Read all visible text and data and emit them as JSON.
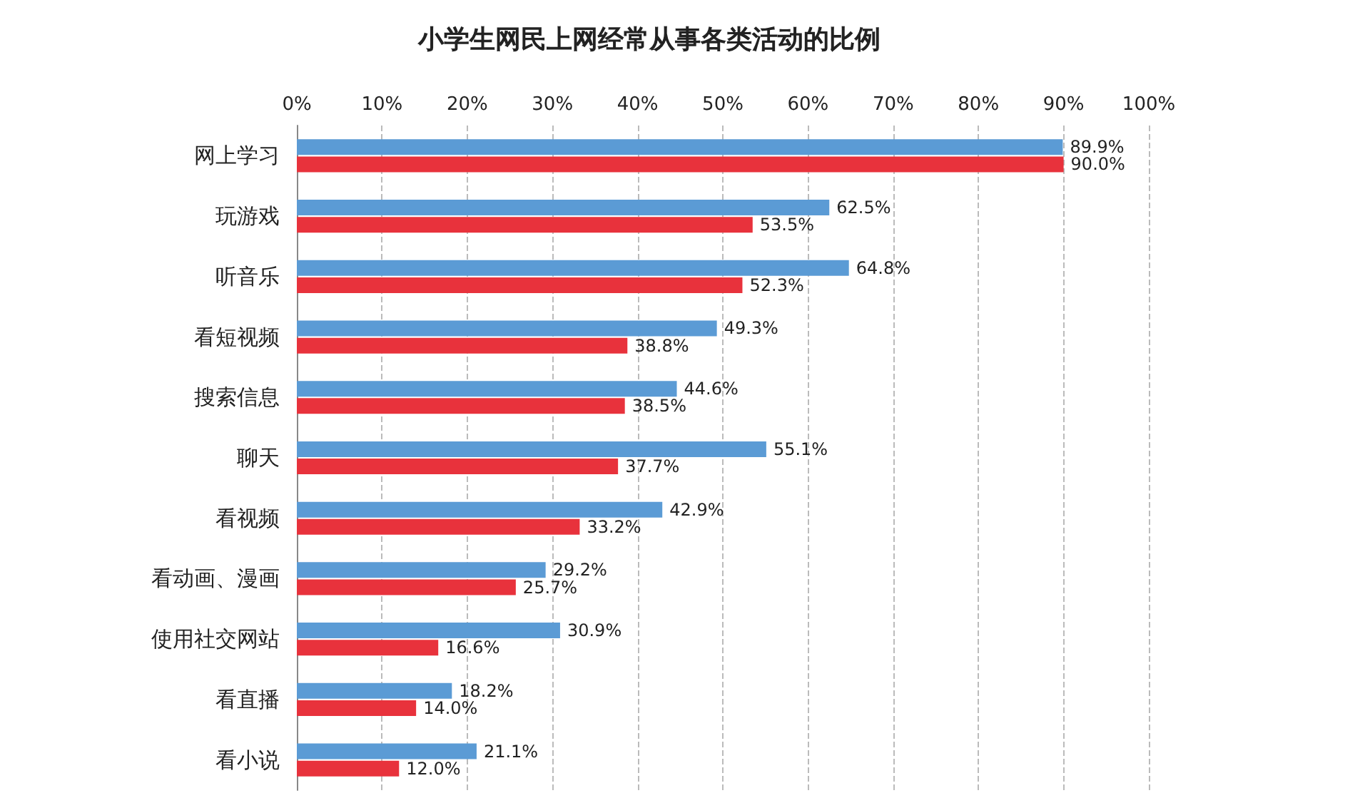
{
  "chart_data": {
    "type": "bar",
    "orientation": "horizontal",
    "title": "小学生网民上网经常从事各类活动的比例",
    "categories": [
      "网上学习",
      "玩游戏",
      "听音乐",
      "看短视频",
      "搜索信息",
      "聊天",
      "看视频",
      "看动画、漫画",
      "使用社交网站",
      "看直播",
      "看小说"
    ],
    "series": [
      {
        "color": "#5b9bd5",
        "values": [
          89.9,
          62.5,
          64.8,
          49.3,
          44.6,
          55.1,
          42.9,
          29.2,
          30.9,
          18.2,
          21.1
        ],
        "value_labels": [
          "89.9%",
          "62.5%",
          "64.8%",
          "49.3%",
          "44.6%",
          "55.1%",
          "42.9%",
          "29.2%",
          "30.9%",
          "18.2%",
          "21.1%"
        ]
      },
      {
        "color": "#e8323c",
        "values": [
          90.0,
          53.5,
          52.3,
          38.8,
          38.5,
          37.7,
          33.2,
          25.7,
          16.6,
          14.0,
          12.0
        ],
        "value_labels": [
          "90.0%",
          "53.5%",
          "52.3%",
          "38.8%",
          "38.5%",
          "37.7%",
          "33.2%",
          "25.7%",
          "16.6%",
          "14.0%",
          "12.0%"
        ]
      }
    ],
    "xlim": [
      0,
      100
    ],
    "xticks": [
      {
        "value": 0,
        "label": "0%"
      },
      {
        "value": 10,
        "label": "10%"
      },
      {
        "value": 20,
        "label": "20%"
      },
      {
        "value": 30,
        "label": "30%"
      },
      {
        "value": 40,
        "label": "40%"
      },
      {
        "value": 50,
        "label": "50%"
      },
      {
        "value": 60,
        "label": "60%"
      },
      {
        "value": 70,
        "label": "70%"
      },
      {
        "value": 80,
        "label": "80%"
      },
      {
        "value": 90,
        "label": "90%"
      },
      {
        "value": 100,
        "label": "100%"
      }
    ],
    "grid": "x"
  }
}
